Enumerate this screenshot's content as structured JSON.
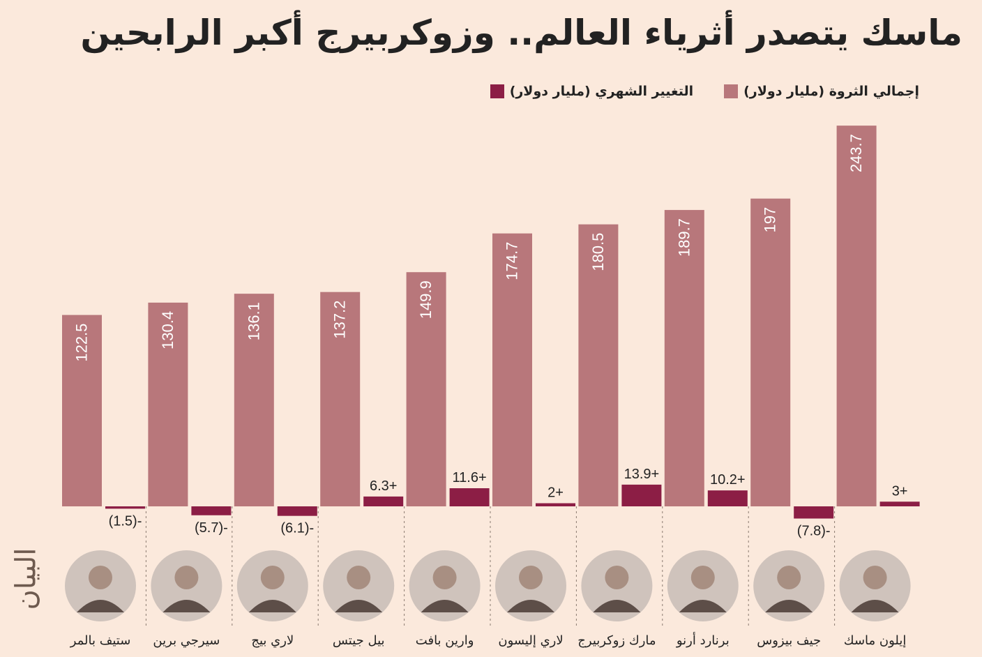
{
  "title": "ماسك يتصدر أثرياء العالم.. وزوكربيرج أكبر الرابحين",
  "legend": {
    "monthly_change": "التغيير الشهري (مليار دولار)",
    "total_wealth": "إجمالي الثروة (مليار دولار)"
  },
  "brand": "البيان",
  "colors": {
    "background": "#fbe9dc",
    "total": "#b8777b",
    "change": "#8c1e45",
    "avatar": "#cfc3bc"
  },
  "chart_data": {
    "type": "bar",
    "categories": [
      "ستيف بالمر",
      "سيرجي برين",
      "لاري بيج",
      "بيل جيتس",
      "وارين بافت",
      "لاري إليسون",
      "مارك زوكربيرج",
      "برنارد أرنو",
      "جيف بيزوس",
      "إيلون ماسك"
    ],
    "series": [
      {
        "name": "إجمالي الثروة (مليار دولار)",
        "values": [
          122.5,
          130.4,
          136.1,
          137.2,
          149.9,
          174.7,
          180.5,
          189.7,
          197,
          243.7
        ],
        "labels": [
          "122.5",
          "130.4",
          "136.1",
          "137.2",
          "149.9",
          "174.7",
          "180.5",
          "189.7",
          "197",
          "243.7"
        ]
      },
      {
        "name": "التغيير الشهري (مليار دولار)",
        "values": [
          -1.5,
          -5.7,
          -6.1,
          6.3,
          11.6,
          2,
          13.9,
          10.2,
          -7.8,
          3
        ],
        "labels": [
          "(1.5)-",
          "(5.7)-",
          "(6.1)-",
          "6.3+",
          "11.6+",
          "2+",
          "13.9+",
          "10.2+",
          "(7.8)-",
          "3+"
        ]
      }
    ],
    "ylim": [
      -10,
      250
    ],
    "grid": false,
    "legend_position": "top-right"
  }
}
